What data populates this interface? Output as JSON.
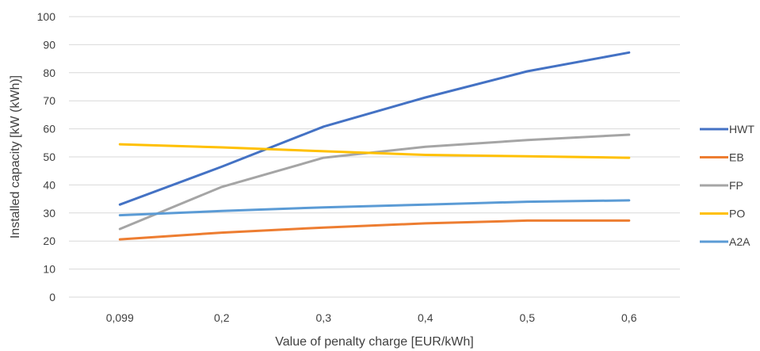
{
  "chart_data": {
    "type": "line",
    "title": "",
    "xlabel": "Value of penalty charge [EUR/kWh]",
    "ylabel": "Installed capacity [kW (kWh)]",
    "categories": [
      "0,099",
      "0,2",
      "0,3",
      "0,4",
      "0,5",
      "0,6"
    ],
    "ylim": [
      0,
      100
    ],
    "yticks": [
      0,
      10,
      20,
      30,
      40,
      50,
      60,
      70,
      80,
      90,
      100
    ],
    "grid": "horizontal",
    "legend_position": "right",
    "series": [
      {
        "name": "HWT",
        "color": "#4472C4",
        "values": [
          33.0,
          46.5,
          60.8,
          71.2,
          80.5,
          87.2
        ]
      },
      {
        "name": "EB",
        "color": "#ED7D31",
        "values": [
          20.6,
          23.0,
          24.8,
          26.3,
          27.3,
          27.3
        ]
      },
      {
        "name": "FP",
        "color": "#A5A5A5",
        "values": [
          24.3,
          39.3,
          49.7,
          53.6,
          56.0,
          57.9
        ]
      },
      {
        "name": "PO",
        "color": "#FFC000",
        "values": [
          54.5,
          53.4,
          52.0,
          50.7,
          50.2,
          49.7
        ]
      },
      {
        "name": "A2A",
        "color": "#5B9BD5",
        "values": [
          29.2,
          30.7,
          32.0,
          33.0,
          34.0,
          34.5
        ]
      }
    ]
  }
}
